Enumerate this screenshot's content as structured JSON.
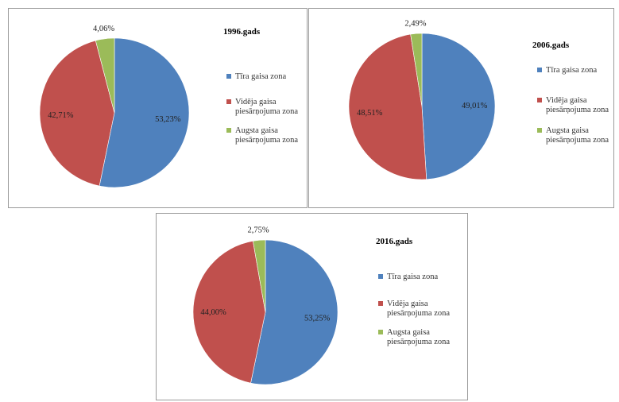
{
  "colors": {
    "clean": "#4f81bd",
    "medium": "#c0504d",
    "high": "#9bbb59"
  },
  "chart_data": [
    {
      "type": "pie",
      "title": "1996.gads",
      "labels": [
        "Tīra gaisa zona",
        "Vidēja gaisa piesārņojuma zona",
        "Augsta gaisa piesārņojuma zona"
      ],
      "values": [
        53.23,
        42.71,
        4.06
      ],
      "value_labels": [
        "53,23%",
        "42,71%",
        "4,06%"
      ],
      "legend_lines": [
        [
          "Tīra gaisa zona"
        ],
        [
          "Vidēja gaisa",
          "piesārņojuma zona"
        ],
        [
          "Augsta gaisa",
          "piesārņojuma zona"
        ]
      ],
      "legend": "right"
    },
    {
      "type": "pie",
      "title": "2006.gads",
      "labels": [
        "Tīra gaisa zona",
        "Vidēja gaisa piesārņojuma zona",
        "Augsta gaisa piesārņojuma zona"
      ],
      "values": [
        49.01,
        48.51,
        2.49
      ],
      "value_labels": [
        "49,01%",
        "48,51%",
        "2,49%"
      ],
      "legend_lines": [
        [
          "Tīra gaisa zona"
        ],
        [
          "Vidēja gaisa",
          "piesārņojuma zona"
        ],
        [
          "Augsta gaisa",
          "piesārņojuma zona"
        ]
      ],
      "legend": "right"
    },
    {
      "type": "pie",
      "title": "2016.gads",
      "labels": [
        "Tīra gaisa zona",
        "Vidēja gaisa piesārņojuma zona",
        "Augsta gaisa piesārņojuma zona"
      ],
      "values": [
        53.25,
        44.0,
        2.75
      ],
      "value_labels": [
        "53,25%",
        "44,00%",
        "2,75%"
      ],
      "legend_lines": [
        [
          "Tīra gaisa zona"
        ],
        [
          "Vidēja gaisa",
          "piesārņojuma zona"
        ],
        [
          "Augsta gaisa",
          "piesārņojuma zona"
        ]
      ],
      "legend": "right"
    }
  ]
}
